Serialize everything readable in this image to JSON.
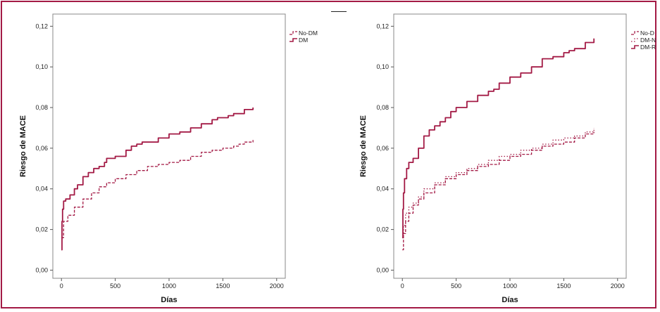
{
  "colors": {
    "border": "#a31a45",
    "series": "#a31a45"
  },
  "chart_data": [
    {
      "type": "line",
      "title": "",
      "xlabel": "Días",
      "ylabel": "Riesgo de MACE",
      "xlim": [
        -80,
        2080
      ],
      "ylim": [
        -0.004,
        0.126
      ],
      "xticks": [
        0,
        500,
        1000,
        1500,
        2000
      ],
      "xtick_labels": [
        "0",
        "500",
        "1000",
        "1500",
        "2000"
      ],
      "yticks": [
        0,
        0.02,
        0.04,
        0.06,
        0.08,
        0.1,
        0.12
      ],
      "ytick_labels": [
        "0,00",
        "0,02",
        "0,04",
        "0,06",
        "0,08",
        "0,10",
        "0,12"
      ],
      "grid": false,
      "legend": "top-right",
      "series": [
        {
          "name": "No-DM",
          "style": "dashed",
          "x": [
            0,
            20,
            60,
            120,
            200,
            280,
            350,
            400,
            420,
            500,
            600,
            700,
            800,
            900,
            1000,
            1100,
            1200,
            1300,
            1400,
            1500,
            1600,
            1650,
            1700,
            1780
          ],
          "y": [
            0.016,
            0.024,
            0.027,
            0.031,
            0.035,
            0.038,
            0.041,
            0.041,
            0.043,
            0.045,
            0.047,
            0.049,
            0.051,
            0.052,
            0.053,
            0.054,
            0.056,
            0.058,
            0.059,
            0.06,
            0.061,
            0.062,
            0.063,
            0.064
          ]
        },
        {
          "name": "DM",
          "style": "solid",
          "x": [
            0,
            5,
            10,
            20,
            40,
            80,
            120,
            150,
            200,
            250,
            300,
            350,
            400,
            420,
            500,
            600,
            650,
            700,
            750,
            800,
            900,
            1000,
            1100,
            1200,
            1300,
            1400,
            1450,
            1500,
            1550,
            1600,
            1700,
            1780
          ],
          "y": [
            0.01,
            0.024,
            0.03,
            0.034,
            0.035,
            0.037,
            0.04,
            0.042,
            0.046,
            0.048,
            0.05,
            0.051,
            0.053,
            0.055,
            0.056,
            0.059,
            0.061,
            0.062,
            0.063,
            0.063,
            0.065,
            0.067,
            0.068,
            0.07,
            0.072,
            0.074,
            0.075,
            0.075,
            0.076,
            0.077,
            0.079,
            0.08
          ]
        }
      ]
    },
    {
      "type": "line",
      "title": "",
      "xlabel": "Días",
      "ylabel": "Riesgo de MACE",
      "xlim": [
        -80,
        2080
      ],
      "ylim": [
        -0.004,
        0.126
      ],
      "xticks": [
        0,
        500,
        1000,
        1500,
        2000
      ],
      "xtick_labels": [
        "0",
        "500",
        "1000",
        "1500",
        "2000"
      ],
      "yticks": [
        0,
        0.02,
        0.04,
        0.06,
        0.08,
        0.1,
        0.12
      ],
      "ytick_labels": [
        "0,00",
        "0,02",
        "0,04",
        "0,06",
        "0,08",
        "0,10",
        "0,12"
      ],
      "grid": false,
      "legend": "top-right (clipped)",
      "series": [
        {
          "name": "No-D",
          "style": "dashed",
          "x": [
            0,
            10,
            30,
            60,
            100,
            150,
            200,
            300,
            400,
            500,
            600,
            700,
            800,
            900,
            1000,
            1100,
            1200,
            1300,
            1400,
            1500,
            1600,
            1700,
            1780
          ],
          "y": [
            0.01,
            0.018,
            0.024,
            0.028,
            0.032,
            0.035,
            0.038,
            0.042,
            0.045,
            0.047,
            0.049,
            0.051,
            0.052,
            0.054,
            0.056,
            0.057,
            0.059,
            0.061,
            0.062,
            0.063,
            0.065,
            0.067,
            0.068
          ]
        },
        {
          "name": "DM-N",
          "style": "dotted",
          "x": [
            0,
            10,
            30,
            60,
            100,
            150,
            200,
            300,
            400,
            500,
            600,
            700,
            800,
            900,
            1000,
            1100,
            1200,
            1300,
            1400,
            1500,
            1600,
            1700,
            1780
          ],
          "y": [
            0.016,
            0.022,
            0.028,
            0.031,
            0.033,
            0.036,
            0.04,
            0.043,
            0.046,
            0.048,
            0.05,
            0.052,
            0.054,
            0.056,
            0.057,
            0.059,
            0.06,
            0.062,
            0.064,
            0.065,
            0.066,
            0.068,
            0.07
          ]
        },
        {
          "name": "DM-R",
          "style": "solid",
          "x": [
            0,
            5,
            10,
            20,
            40,
            60,
            100,
            150,
            200,
            250,
            300,
            350,
            400,
            450,
            500,
            600,
            700,
            800,
            850,
            900,
            1000,
            1100,
            1200,
            1300,
            1400,
            1500,
            1550,
            1600,
            1700,
            1780
          ],
          "y": [
            0.016,
            0.03,
            0.038,
            0.045,
            0.05,
            0.053,
            0.055,
            0.06,
            0.066,
            0.069,
            0.071,
            0.073,
            0.075,
            0.078,
            0.08,
            0.083,
            0.086,
            0.088,
            0.089,
            0.092,
            0.095,
            0.097,
            0.1,
            0.104,
            0.105,
            0.107,
            0.108,
            0.109,
            0.112,
            0.114
          ]
        }
      ]
    }
  ]
}
